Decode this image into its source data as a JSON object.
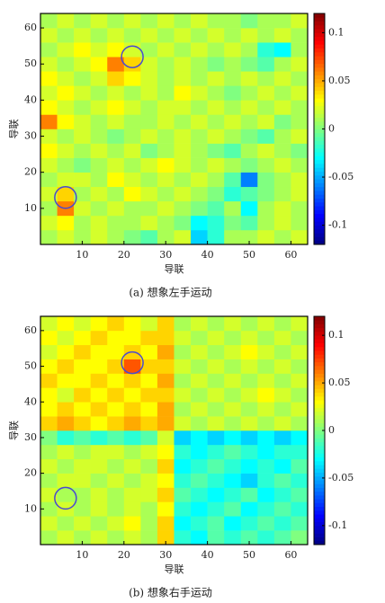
{
  "chart_data": [
    {
      "type": "heatmap",
      "caption": "(a)   想象左手运动",
      "xlabel": "导联",
      "ylabel": "导联",
      "xlim": [
        0,
        64
      ],
      "ylim": [
        0,
        64
      ],
      "xticks": [
        10,
        20,
        30,
        40,
        50,
        60
      ],
      "yticks": [
        10,
        20,
        30,
        40,
        50,
        60
      ],
      "colormap": "jet",
      "clim": [
        -0.12,
        0.12
      ],
      "cticks": [
        -0.1,
        -0.05,
        0,
        0.05,
        0.1
      ],
      "z": [
        [
          0.01,
          0.02,
          0.01,
          0.02,
          0.01,
          0,
          -0.01,
          0.01,
          0.02,
          -0.04,
          -0.02,
          0.01,
          0.01,
          0.02,
          0.01,
          0.02
        ],
        [
          0.02,
          0.03,
          0.01,
          0.02,
          0.01,
          0.01,
          0.02,
          0.01,
          0,
          -0.03,
          -0.02,
          0,
          -0.01,
          0.01,
          0.02,
          0.01
        ],
        [
          0.01,
          0.06,
          0.02,
          0.01,
          0.02,
          0.01,
          0.01,
          0.02,
          0.01,
          0,
          -0.01,
          0.01,
          -0.03,
          0.01,
          0.02,
          0.01
        ],
        [
          0.02,
          0.04,
          0.01,
          0.02,
          0.01,
          0.03,
          0.02,
          0.01,
          0.02,
          0.01,
          0,
          -0.02,
          -0.01,
          0,
          0.01,
          0.02
        ],
        [
          0.01,
          0.02,
          0.02,
          0.01,
          0.03,
          0.02,
          0.01,
          0.02,
          0.01,
          0.02,
          0.01,
          -0.01,
          -0.06,
          0,
          0.01,
          0.02
        ],
        [
          0.02,
          0.01,
          0,
          0.01,
          0.02,
          0.01,
          0.02,
          0.03,
          0.02,
          0.01,
          0.02,
          0.01,
          0,
          0.01,
          0.02,
          0.01
        ],
        [
          0.03,
          0.02,
          0.01,
          0.02,
          0.01,
          0.02,
          0,
          0.01,
          0.02,
          0.01,
          0,
          -0.01,
          0.01,
          0.02,
          0.01,
          0
        ],
        [
          0.02,
          0.01,
          0.02,
          0.01,
          0,
          0.01,
          0.02,
          0.01,
          0.02,
          0.01,
          0.02,
          0.01,
          0,
          -0.01,
          0.01,
          0.02
        ],
        [
          0.06,
          0.03,
          0.02,
          0.01,
          0.02,
          0.01,
          0.01,
          0.02,
          0.01,
          0.02,
          0.01,
          0.02,
          0.01,
          0.02,
          0,
          0.01
        ],
        [
          0.03,
          0.02,
          0.01,
          0.02,
          0.03,
          0.02,
          0.01,
          0.02,
          0.02,
          0.01,
          0.02,
          0.01,
          0.02,
          0.01,
          0.02,
          0.01
        ],
        [
          0.02,
          0.03,
          0.02,
          0.01,
          0.02,
          0.01,
          0.02,
          0.01,
          0.03,
          0.02,
          0.01,
          0,
          0.01,
          0.02,
          0.01,
          0.02
        ],
        [
          0.03,
          0.02,
          0.01,
          0.02,
          0.04,
          0.03,
          0.02,
          0.01,
          0.02,
          0.01,
          0.02,
          0.01,
          0.02,
          0.01,
          0.02,
          0.01
        ],
        [
          0.02,
          0.01,
          0.02,
          0.03,
          0.06,
          0.04,
          0.02,
          0.01,
          0.02,
          0.01,
          0,
          0.01,
          0,
          -0.01,
          0.01,
          0.02
        ],
        [
          0.01,
          0.02,
          0.03,
          0.02,
          0.03,
          0.02,
          0.01,
          0.02,
          0.01,
          0.02,
          0.01,
          0.02,
          0.01,
          -0.02,
          -0.03,
          0.01
        ],
        [
          0.02,
          0.01,
          0.02,
          0.01,
          0.02,
          0.01,
          0.02,
          0.01,
          0.02,
          0.01,
          0.02,
          0.01,
          0.02,
          0.01,
          0.02,
          0.01
        ],
        [
          0.01,
          0.02,
          0.01,
          0.02,
          0.01,
          0.02,
          0.01,
          0.02,
          0.01,
          0.02,
          0.01,
          0.01,
          0,
          0.01,
          0.01,
          0.02
        ]
      ]
    },
    {
      "type": "heatmap",
      "caption": "(b)   想象右手运动",
      "xlabel": "导联",
      "ylabel": "导联",
      "xlim": [
        0,
        64
      ],
      "ylim": [
        0,
        64
      ],
      "xticks": [
        10,
        20,
        30,
        40,
        50,
        60
      ],
      "yticks": [
        10,
        20,
        30,
        40,
        50,
        60
      ],
      "colormap": "jet",
      "clim": [
        -0.12,
        0.12
      ],
      "cticks": [
        -0.1,
        -0.05,
        0,
        0.05,
        0.1
      ],
      "z": [
        [
          0.01,
          0.02,
          0.01,
          0.02,
          0.01,
          0.02,
          0.01,
          0.04,
          -0.02,
          -0.03,
          -0.01,
          -0.02,
          -0.01,
          -0.02,
          -0.01,
          0
        ],
        [
          0.02,
          0.01,
          0.02,
          0.01,
          0.02,
          0.03,
          0.01,
          0.04,
          -0.03,
          -0.02,
          -0.01,
          -0.03,
          -0.02,
          -0.01,
          -0.02,
          -0.01
        ],
        [
          0.01,
          0.02,
          0.01,
          0.02,
          0.01,
          0.02,
          0.01,
          0.03,
          -0.02,
          -0.03,
          -0.02,
          -0.01,
          -0.03,
          -0.02,
          -0.01,
          -0.02
        ],
        [
          0.02,
          0.01,
          0.01,
          0.02,
          0.01,
          0.02,
          0.02,
          0.04,
          -0.01,
          -0.02,
          -0.03,
          -0.02,
          -0.01,
          -0.03,
          -0.02,
          -0.01
        ],
        [
          0.01,
          0.02,
          0.02,
          0.01,
          0.02,
          0.01,
          0.02,
          0.03,
          -0.02,
          -0.01,
          -0.02,
          -0.03,
          -0.04,
          -0.02,
          -0.01,
          -0.02
        ],
        [
          0.02,
          0.01,
          0.02,
          0.02,
          0.01,
          0.02,
          0.01,
          0.04,
          -0.03,
          -0.02,
          -0.01,
          -0.02,
          -0.03,
          -0.02,
          -0.03,
          -0.01
        ],
        [
          0.01,
          0.02,
          0.01,
          0.02,
          0.02,
          0.01,
          0.02,
          0.03,
          -0.02,
          -0.03,
          -0.02,
          -0.01,
          -0.02,
          -0.03,
          -0.02,
          -0.02
        ],
        [
          0,
          -0.02,
          -0.01,
          -0.02,
          -0.01,
          -0.02,
          -0.01,
          0.02,
          -0.04,
          -0.03,
          -0.04,
          -0.03,
          -0.04,
          -0.03,
          -0.04,
          -0.03
        ],
        [
          0.04,
          0.05,
          0.04,
          0.03,
          0.04,
          0.05,
          0.04,
          0.05,
          0.02,
          0.01,
          0.02,
          0.01,
          0.02,
          0.01,
          0.02,
          0.01
        ],
        [
          0.03,
          0.04,
          0.03,
          0.04,
          0.03,
          0.04,
          0.03,
          0.05,
          0.01,
          0.02,
          0.01,
          0.02,
          0.01,
          0.02,
          0.01,
          0.02
        ],
        [
          0.03,
          0.02,
          0.04,
          0.03,
          0.04,
          0.03,
          0.04,
          0.04,
          0.02,
          0.01,
          0.02,
          0.01,
          0.02,
          0.03,
          0.02,
          0.01
        ],
        [
          0.04,
          0.03,
          0.03,
          0.04,
          0.03,
          0.04,
          0.03,
          0.05,
          0.01,
          0.02,
          0.01,
          0.02,
          0.01,
          0.02,
          0.01,
          0.02
        ],
        [
          0.03,
          0.04,
          0.03,
          0.03,
          0.04,
          0.07,
          0.04,
          0.04,
          0.02,
          0.01,
          0.02,
          0.01,
          0.02,
          0.01,
          0.02,
          0.01
        ],
        [
          0.02,
          0.03,
          0.04,
          0.03,
          0.03,
          0.04,
          0.03,
          0.05,
          0.01,
          0.02,
          0.01,
          0.02,
          0.03,
          0.02,
          0.01,
          0.02
        ],
        [
          0.03,
          0.02,
          0.03,
          0.04,
          0.03,
          0.03,
          0.04,
          0.04,
          0.02,
          0.01,
          0.02,
          0.01,
          0.02,
          0.01,
          0.02,
          0.01
        ],
        [
          0.02,
          0.03,
          0.02,
          0.03,
          0.04,
          0.03,
          0.02,
          0.04,
          0.01,
          0.02,
          0.01,
          0.02,
          0.01,
          0.02,
          0.01,
          0.02
        ]
      ]
    }
  ]
}
